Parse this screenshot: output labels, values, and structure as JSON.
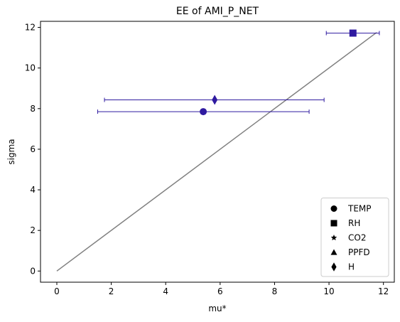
{
  "chart_data": {
    "type": "scatter",
    "title": "EE of AMI_P_NET",
    "xlabel": "mu*",
    "ylabel": "sigma",
    "xlim": [
      -0.6,
      12.4
    ],
    "ylim": [
      -0.55,
      12.3
    ],
    "xticks": [
      0,
      2,
      4,
      6,
      8,
      10,
      12
    ],
    "yticks": [
      0,
      2,
      4,
      6,
      8,
      10,
      12
    ],
    "grid": false,
    "legend_position": "lower-right",
    "marker_color": "#2f1aa0",
    "reference_line": {
      "x": [
        0,
        11.75
      ],
      "y": [
        0,
        11.75
      ],
      "color": "#808080"
    },
    "points": [
      {
        "name": "TEMP",
        "marker": "circle",
        "x": 5.38,
        "y": 7.85,
        "xerr_low": 1.5,
        "xerr_high": 9.27
      },
      {
        "name": "H",
        "marker": "diamond",
        "x": 5.8,
        "y": 8.43,
        "xerr_low": 1.75,
        "xerr_high": 9.82
      },
      {
        "name": "RH",
        "marker": "square",
        "x": 10.88,
        "y": 11.72,
        "xerr_low": 9.9,
        "xerr_high": 11.85
      }
    ],
    "legend": [
      {
        "label": "TEMP",
        "marker": "circle"
      },
      {
        "label": "RH",
        "marker": "square"
      },
      {
        "label": "CO2",
        "marker": "star"
      },
      {
        "label": "PPFD",
        "marker": "triangle"
      },
      {
        "label": "H",
        "marker": "diamond"
      }
    ]
  }
}
